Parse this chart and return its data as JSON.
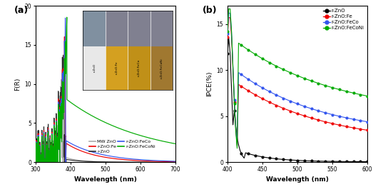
{
  "panel_a": {
    "title": "(a)",
    "xlabel": "Wavelength (nm)",
    "ylabel": "F(R)",
    "xlim": [
      300,
      700
    ],
    "ylim": [
      0,
      20
    ],
    "yticks": [
      0,
      5,
      10,
      15,
      20
    ],
    "xticks": [
      300,
      400,
      500,
      600,
      700
    ],
    "series": {
      "MW_ZnO": {
        "color": "#aaaaaa",
        "label": "MW ZnO"
      },
      "r_ZnO": {
        "color": "#2a2a2a",
        "label": "r-ZnO"
      },
      "r_ZnO_Fe": {
        "color": "#ee0000",
        "label": "r-ZnO:Fe"
      },
      "r_ZnO_FeCo": {
        "color": "#3355ee",
        "label": "r-ZnO:FeCo"
      },
      "r_ZnO_FeCoNi": {
        "color": "#00aa00",
        "label": "r-ZnO:FeCoNi"
      }
    },
    "inset": {
      "colors": [
        "#e8e8e8",
        "#d4a020",
        "#c09018",
        "#a07830"
      ],
      "top_colors": [
        "#8090a0",
        "#808090",
        "#808090",
        "#808090"
      ],
      "labels": [
        "r-ZnO",
        "r-ZnO:Fe",
        "r-ZnO:FeCo",
        "r-ZnO:FeCoNi"
      ]
    }
  },
  "panel_b": {
    "title": "(b)",
    "xlabel": "Wavelength (nm)",
    "ylabel": "IPCE(%)",
    "xlim": [
      400,
      600
    ],
    "ylim": [
      0,
      17
    ],
    "yticks": [
      0,
      5,
      10,
      15
    ],
    "xticks": [
      400,
      450,
      500,
      550,
      600
    ],
    "series": {
      "r_ZnO": {
        "color": "#000000",
        "label": "r-ZnO"
      },
      "r_ZnO_Fe": {
        "color": "#ee0000",
        "label": "r-ZnO:Fe"
      },
      "r_ZnO_FeCo": {
        "color": "#3355ee",
        "label": "r-ZnO:FeCo"
      },
      "r_ZnO_FeCoNi": {
        "color": "#00aa00",
        "label": "r-ZnO:FeCoNi"
      }
    }
  }
}
